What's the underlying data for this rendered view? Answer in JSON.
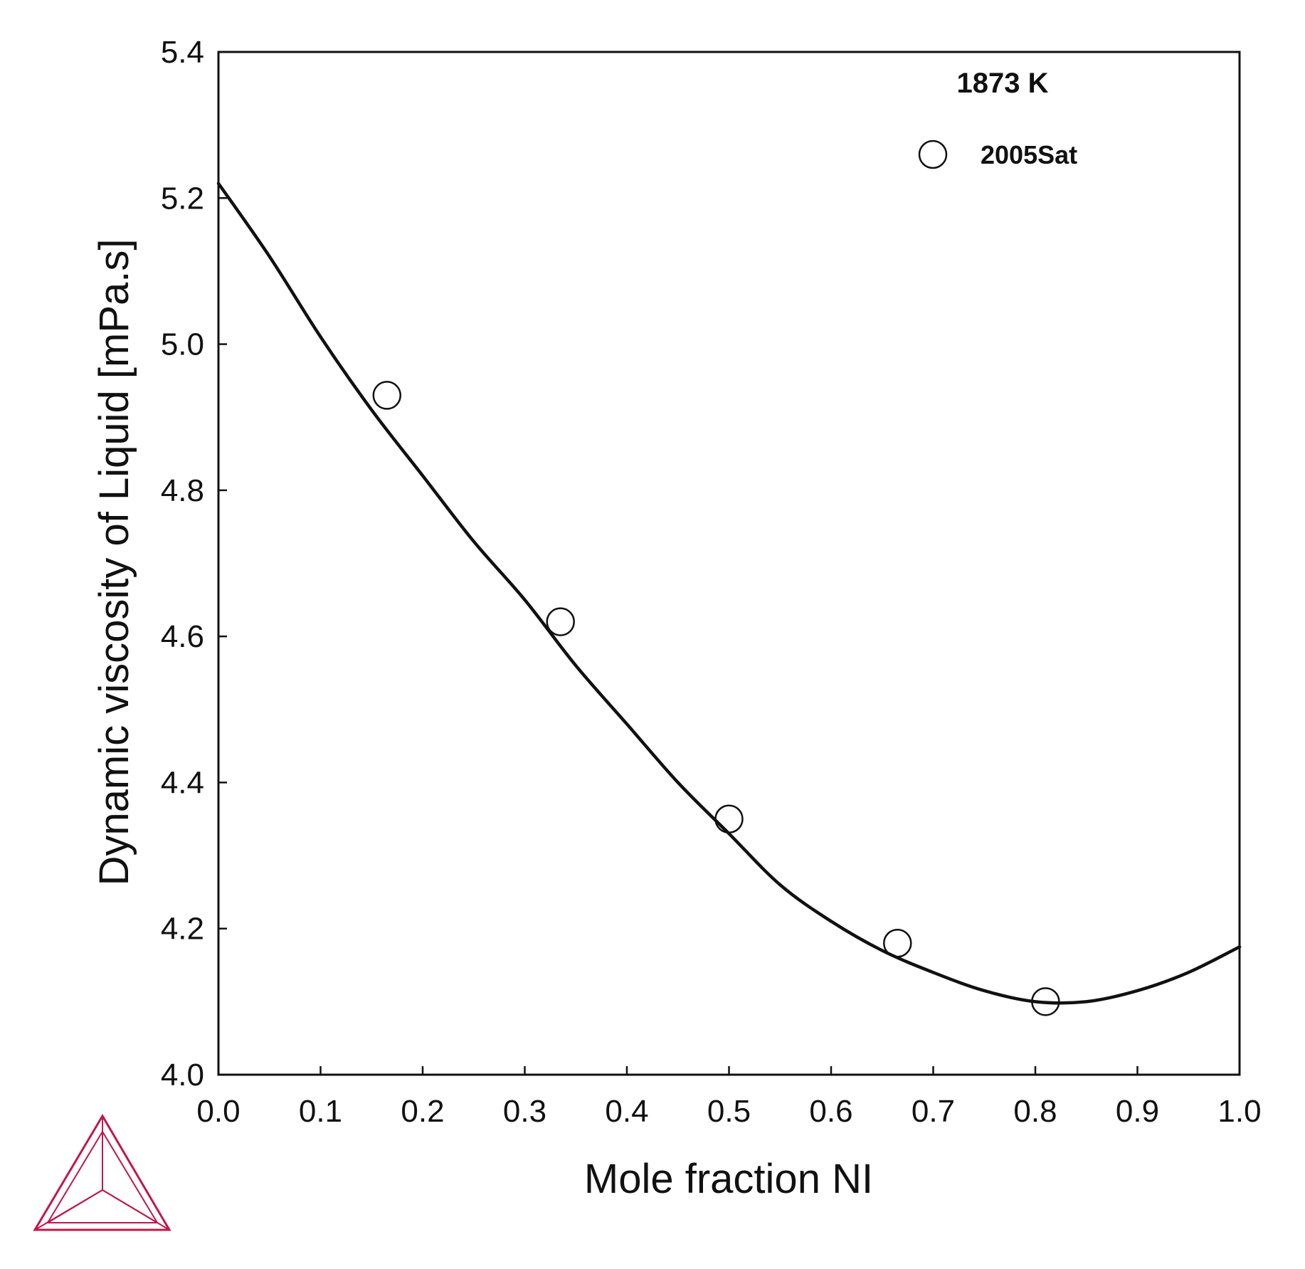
{
  "chart_data": {
    "type": "line",
    "annotation": "1873 K",
    "xlabel": "Mole fraction NI",
    "ylabel": "Dynamic viscosity of Liquid [mPa.s]",
    "xlim": [
      0.0,
      1.0
    ],
    "ylim": [
      4.0,
      5.4
    ],
    "x_ticks": [
      "0.0",
      "0.1",
      "0.2",
      "0.3",
      "0.4",
      "0.5",
      "0.6",
      "0.7",
      "0.8",
      "0.9",
      "1.0"
    ],
    "y_ticks": [
      "4.0",
      "4.2",
      "4.4",
      "4.6",
      "4.8",
      "5.0",
      "5.2",
      "5.4"
    ],
    "grid": false,
    "legend_position": "top-right",
    "series": [
      {
        "style": "line",
        "color": "#111111",
        "x": [
          0.0,
          0.05,
          0.1,
          0.15,
          0.2,
          0.25,
          0.3,
          0.35,
          0.4,
          0.45,
          0.5,
          0.55,
          0.6,
          0.65,
          0.7,
          0.75,
          0.8,
          0.85,
          0.9,
          0.95,
          1.0
        ],
        "y": [
          5.22,
          5.12,
          5.01,
          4.91,
          4.82,
          4.73,
          4.65,
          4.56,
          4.48,
          4.4,
          4.33,
          4.26,
          4.21,
          4.17,
          4.14,
          4.115,
          4.1,
          4.1,
          4.115,
          4.14,
          4.175
        ]
      },
      {
        "name": "2005Sat",
        "style": "open-circle",
        "color": "#111111",
        "x": [
          0.165,
          0.335,
          0.5,
          0.665,
          0.81
        ],
        "y": [
          4.93,
          4.62,
          4.35,
          4.18,
          4.1
        ]
      }
    ]
  },
  "logo": {
    "name": "triangle-logo-icon",
    "color": "#c0184a"
  }
}
